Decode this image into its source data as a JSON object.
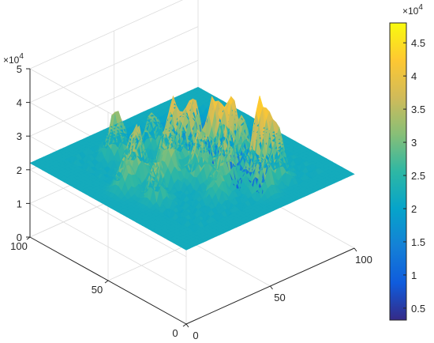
{
  "chart_data": {
    "type": "surface",
    "title": "",
    "x_axis": {
      "ticks": [
        "0",
        "50",
        "100"
      ],
      "range": [
        0,
        100
      ]
    },
    "y_axis": {
      "ticks": [
        "0",
        "50",
        "100"
      ],
      "range": [
        0,
        100
      ]
    },
    "z_axis": {
      "ticks": [
        "0",
        "1",
        "2",
        "3",
        "4",
        "5"
      ],
      "exponent": "×10^4",
      "range": [
        0,
        50000
      ]
    },
    "grid": true,
    "baseline_plateau": 22000,
    "colormap": "parula",
    "colorbar": {
      "location": "right",
      "exponent": "×10^4",
      "ticks": [
        "0.5",
        "1",
        "1.5",
        "2",
        "2.5",
        "3",
        "3.5",
        "4",
        "4.5"
      ],
      "range": [
        3200,
        48000
      ],
      "colors": [
        "#352a87",
        "#0f5cdd",
        "#1481d6",
        "#06a4ca",
        "#2eb7a4",
        "#87bf77",
        "#d1bb59",
        "#fec832",
        "#f9fb0e"
      ]
    },
    "peaks": [
      {
        "x": 62,
        "y": 38,
        "z": 43000
      },
      {
        "x": 58,
        "y": 45,
        "z": 42000
      },
      {
        "x": 55,
        "y": 55,
        "z": 41000
      },
      {
        "x": 48,
        "y": 60,
        "z": 40000
      },
      {
        "x": 66,
        "y": 24,
        "z": 45000
      },
      {
        "x": 72,
        "y": 20,
        "z": 38000
      },
      {
        "x": 45,
        "y": 40,
        "z": 37000
      },
      {
        "x": 40,
        "y": 55,
        "z": 36000
      },
      {
        "x": 35,
        "y": 48,
        "z": 33000
      },
      {
        "x": 30,
        "y": 65,
        "z": 35000
      },
      {
        "x": 25,
        "y": 58,
        "z": 37000
      },
      {
        "x": 20,
        "y": 40,
        "z": 34000
      },
      {
        "x": 15,
        "y": 55,
        "z": 32000
      },
      {
        "x": 52,
        "y": 30,
        "z": 36000
      },
      {
        "x": 60,
        "y": 15,
        "z": 33000
      },
      {
        "x": 42,
        "y": 25,
        "z": 30000
      },
      {
        "x": 70,
        "y": 40,
        "z": 35000
      },
      {
        "x": 75,
        "y": 55,
        "z": 34000
      },
      {
        "x": 33,
        "y": 80,
        "z": 36000
      },
      {
        "x": 50,
        "y": 75,
        "z": 33000
      }
    ],
    "troughs": [
      {
        "x": 80,
        "y": 55,
        "z": 5000
      },
      {
        "x": 85,
        "y": 45,
        "z": 8000
      },
      {
        "x": 82,
        "y": 68,
        "z": 12000
      },
      {
        "x": 76,
        "y": 78,
        "z": 15000
      },
      {
        "x": 88,
        "y": 78,
        "z": 5500
      },
      {
        "x": 90,
        "y": 60,
        "z": 14000
      },
      {
        "x": 72,
        "y": 88,
        "z": 18000
      },
      {
        "x": 55,
        "y": 90,
        "z": 18000
      }
    ]
  }
}
